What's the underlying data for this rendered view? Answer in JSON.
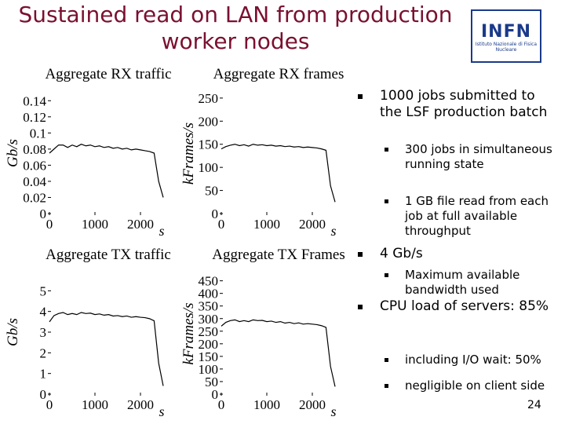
{
  "title": "Sustained read on LAN from production worker nodes",
  "logo": {
    "name": "INFN",
    "subtitle": "Istituto Nazionale di Fisica Nucleare"
  },
  "charts": [
    {
      "type": "line",
      "title": "Aggregate RX traffic",
      "ylabel": "Gb/s",
      "xlabel": "s",
      "xlim": [
        0,
        2500
      ],
      "ylim": [
        0,
        0.15
      ],
      "xticks": [
        0,
        1000,
        2000
      ],
      "yticks": [
        0,
        0.02,
        0.04,
        0.06,
        0.08,
        0.1,
        0.12,
        0.14
      ],
      "x": [
        0,
        100,
        200,
        300,
        400,
        500,
        600,
        700,
        800,
        900,
        1000,
        1100,
        1200,
        1300,
        1400,
        1500,
        1600,
        1700,
        1800,
        1900,
        2000,
        2100,
        2200,
        2300,
        2400,
        2500
      ],
      "values": [
        0.075,
        0.08,
        0.085,
        0.085,
        0.082,
        0.085,
        0.083,
        0.086,
        0.084,
        0.085,
        0.083,
        0.084,
        0.082,
        0.083,
        0.081,
        0.082,
        0.08,
        0.081,
        0.079,
        0.08,
        0.079,
        0.078,
        0.077,
        0.075,
        0.04,
        0.02
      ],
      "color": "#000000"
    },
    {
      "type": "line",
      "title": "Aggregate RX frames",
      "ylabel": "kFrames/s",
      "xlabel": "s",
      "xlim": [
        0,
        2500
      ],
      "ylim": [
        0,
        260
      ],
      "xticks": [
        0,
        1000,
        2000
      ],
      "yticks": [
        0,
        50,
        100,
        150,
        200,
        250
      ],
      "x": [
        0,
        100,
        200,
        300,
        400,
        500,
        600,
        700,
        800,
        900,
        1000,
        1100,
        1200,
        1300,
        1400,
        1500,
        1600,
        1700,
        1800,
        1900,
        2000,
        2100,
        2200,
        2300,
        2400,
        2500
      ],
      "values": [
        140,
        145,
        148,
        150,
        147,
        149,
        146,
        150,
        148,
        149,
        147,
        148,
        146,
        147,
        145,
        146,
        144,
        145,
        143,
        144,
        143,
        142,
        140,
        137,
        60,
        25
      ],
      "color": "#000000"
    },
    {
      "type": "line",
      "title": "Aggregate TX traffic",
      "ylabel": "Gb/s",
      "xlabel": "s",
      "xlim": [
        0,
        2500
      ],
      "ylim": [
        0,
        6
      ],
      "xticks": [
        0,
        1000,
        2000
      ],
      "yticks": [
        0,
        1,
        2,
        3,
        4,
        5
      ],
      "x": [
        0,
        100,
        200,
        300,
        400,
        500,
        600,
        700,
        800,
        900,
        1000,
        1100,
        1200,
        1300,
        1400,
        1500,
        1600,
        1700,
        1800,
        1900,
        2000,
        2100,
        2200,
        2300,
        2400,
        2500
      ],
      "values": [
        3.5,
        3.8,
        3.9,
        3.95,
        3.85,
        3.9,
        3.85,
        3.95,
        3.9,
        3.92,
        3.85,
        3.88,
        3.82,
        3.85,
        3.78,
        3.8,
        3.75,
        3.78,
        3.72,
        3.75,
        3.72,
        3.7,
        3.65,
        3.55,
        1.5,
        0.4
      ],
      "color": "#000000"
    },
    {
      "type": "line",
      "title": "Aggregate TX Frames",
      "ylabel": "kFrames/s",
      "xlabel": "s",
      "xlim": [
        0,
        2500
      ],
      "ylim": [
        0,
        480
      ],
      "xticks": [
        0,
        1000,
        2000
      ],
      "yticks": [
        0,
        50,
        100,
        150,
        200,
        250,
        300,
        350,
        400,
        450
      ],
      "x": [
        0,
        100,
        200,
        300,
        400,
        500,
        600,
        700,
        800,
        900,
        1000,
        1100,
        1200,
        1300,
        1400,
        1500,
        1600,
        1700,
        1800,
        1900,
        2000,
        2100,
        2200,
        2300,
        2400,
        2500
      ],
      "values": [
        270,
        285,
        292,
        295,
        288,
        292,
        288,
        295,
        292,
        293,
        288,
        290,
        285,
        288,
        282,
        285,
        280,
        283,
        278,
        280,
        278,
        276,
        272,
        265,
        110,
        30
      ],
      "color": "#000000"
    }
  ],
  "bullets": [
    {
      "text": "1000 jobs submitted to the LSF production batch",
      "sub": [
        "300 jobs in simultaneous running state",
        "1 GB file read from each job at full available throughput"
      ]
    },
    {
      "text": "4 Gb/s",
      "sub": [
        "Maximum available bandwidth used"
      ]
    },
    {
      "text": "CPU load of servers: 85%",
      "sub": [
        "including I/O wait: 50%",
        "negligible on client side"
      ]
    }
  ],
  "page_number": "24"
}
